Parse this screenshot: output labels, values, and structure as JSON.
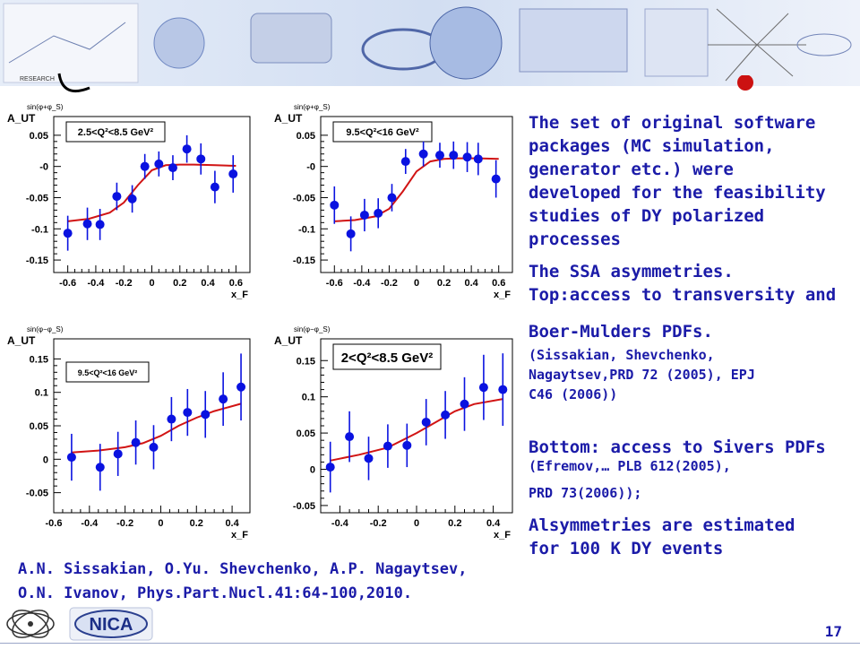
{
  "banner": {
    "logo_caption": "RESEARCH"
  },
  "description": {
    "p1": [
      "The set of original software",
      "packages (MC simulation,",
      "generator etc.) were",
      "developed for the feasibility",
      "studies of DY  polarized",
      "processes"
    ],
    "p2": [
      "The SSA asymmetries.",
      "Top:access to transversity and"
    ],
    "p3": "Boer-Mulders  PDFs.",
    "ref1": [
      "(Sissakian, Shevchenko,",
      "Nagaytsev,PRD 72 (2005), EPJ",
      "C46 (2006))"
    ],
    "p4": "Bottom: access to Sivers PDFs",
    "ref2": [
      "(Efremov,… PLB 612(2005),",
      "PRD 73(2006));"
    ],
    "p5": [
      "Alsymmetries are estimated",
      "for 100 K  DY events"
    ]
  },
  "citation": [
    "A.N. Sissakian, O.Yu. Shevchenko, A.P. Nagaytsev,",
    "O.N. Ivanov, Phys.Part.Nucl.41:64-100,2010."
  ],
  "footer": {
    "logo_text": "NICA",
    "page_number": "17"
  },
  "colors": {
    "point": "#0a12e0",
    "curve": "#d11414",
    "text": "#1b1ba8"
  },
  "chart_data": [
    {
      "type": "scatter",
      "ylabel": "A_UT",
      "ylabel_super": "sin(φ+φ_S)",
      "xlabel": "x_F",
      "legend": "2.5<Q²<8.5 GeV²",
      "xlim": [
        -0.7,
        0.7
      ],
      "ylim": [
        -0.17,
        0.08
      ],
      "xticks": [
        -0.6,
        -0.4,
        -0.2,
        0,
        0.2,
        0.4,
        0.6
      ],
      "xtick_labels": [
        "-0.6",
        "-0.4",
        "-0.2",
        "0",
        "0.2",
        "0.4",
        "0.6"
      ],
      "yticks": [
        -0.15,
        -0.1,
        -0.05,
        0,
        0.05
      ],
      "ytick_labels": [
        "-0.15",
        "-0.1",
        "-0.05",
        "-0",
        "0.05"
      ],
      "points": [
        {
          "x": -0.6,
          "y": -0.107,
          "err": 0.028
        },
        {
          "x": -0.46,
          "y": -0.092,
          "err": 0.026
        },
        {
          "x": -0.37,
          "y": -0.093,
          "err": 0.025
        },
        {
          "x": -0.25,
          "y": -0.048,
          "err": 0.022
        },
        {
          "x": -0.14,
          "y": -0.052,
          "err": 0.022
        },
        {
          "x": -0.05,
          "y": 0.0,
          "err": 0.02
        },
        {
          "x": 0.05,
          "y": 0.004,
          "err": 0.02
        },
        {
          "x": 0.15,
          "y": -0.002,
          "err": 0.02
        },
        {
          "x": 0.25,
          "y": 0.028,
          "err": 0.022
        },
        {
          "x": 0.35,
          "y": 0.012,
          "err": 0.025
        },
        {
          "x": 0.45,
          "y": -0.033,
          "err": 0.026
        },
        {
          "x": 0.58,
          "y": -0.012,
          "err": 0.03
        }
      ],
      "fit": {
        "x": [
          -0.6,
          -0.45,
          -0.3,
          -0.2,
          -0.1,
          0.0,
          0.1,
          0.2,
          0.3,
          0.45,
          0.6
        ],
        "y": [
          -0.088,
          -0.084,
          -0.074,
          -0.058,
          -0.03,
          -0.006,
          0.002,
          0.003,
          0.003,
          0.002,
          0.001
        ]
      }
    },
    {
      "type": "scatter",
      "ylabel": "A_UT",
      "ylabel_super": "sin(φ+φ_S)",
      "xlabel": "x_F",
      "legend": "9.5<Q²<16 GeV²",
      "xlim": [
        -0.7,
        0.7
      ],
      "ylim": [
        -0.17,
        0.08
      ],
      "xticks": [
        -0.6,
        -0.4,
        -0.2,
        0,
        0.2,
        0.4,
        0.6
      ],
      "xtick_labels": [
        "-0.6",
        "-0.4",
        "-0.2",
        "0",
        "0.2",
        "0.4",
        "0.6"
      ],
      "yticks": [
        -0.15,
        -0.1,
        -0.05,
        0,
        0.05
      ],
      "ytick_labels": [
        "-0.15",
        "-0.1",
        "-0.05",
        "-0",
        "0.05"
      ],
      "points": [
        {
          "x": -0.6,
          "y": -0.062,
          "err": 0.03
        },
        {
          "x": -0.48,
          "y": -0.108,
          "err": 0.028
        },
        {
          "x": -0.38,
          "y": -0.078,
          "err": 0.026
        },
        {
          "x": -0.28,
          "y": -0.075,
          "err": 0.024
        },
        {
          "x": -0.18,
          "y": -0.05,
          "err": 0.022
        },
        {
          "x": -0.08,
          "y": 0.008,
          "err": 0.02
        },
        {
          "x": 0.05,
          "y": 0.02,
          "err": 0.02
        },
        {
          "x": 0.17,
          "y": 0.018,
          "err": 0.02
        },
        {
          "x": 0.27,
          "y": 0.018,
          "err": 0.022
        },
        {
          "x": 0.37,
          "y": 0.015,
          "err": 0.024
        },
        {
          "x": 0.45,
          "y": 0.012,
          "err": 0.026
        },
        {
          "x": 0.58,
          "y": -0.02,
          "err": 0.03
        }
      ],
      "fit": {
        "x": [
          -0.6,
          -0.45,
          -0.3,
          -0.2,
          -0.1,
          0.0,
          0.1,
          0.2,
          0.3,
          0.45,
          0.6
        ],
        "y": [
          -0.088,
          -0.086,
          -0.08,
          -0.068,
          -0.04,
          -0.008,
          0.008,
          0.012,
          0.013,
          0.013,
          0.012
        ]
      }
    },
    {
      "type": "scatter",
      "ylabel": "A_UT",
      "ylabel_super": "sin(φ−φ_S)",
      "xlabel": "x_F",
      "legend": "9.5<Q²<16 GeV²",
      "xlim": [
        -0.6,
        0.5
      ],
      "ylim": [
        -0.08,
        0.18
      ],
      "xticks": [
        -0.6,
        -0.4,
        -0.2,
        0,
        0.2,
        0.4
      ],
      "xtick_labels": [
        "-0.6",
        "-0.4",
        "-0.2",
        "0",
        "0.2",
        "0.4"
      ],
      "yticks": [
        -0.05,
        0,
        0.05,
        0.1,
        0.15
      ],
      "ytick_labels": [
        "-0.05",
        "0",
        "0.05",
        "0.1",
        "0.15"
      ],
      "points": [
        {
          "x": -0.5,
          "y": 0.003,
          "err": 0.035
        },
        {
          "x": -0.34,
          "y": -0.012,
          "err": 0.035
        },
        {
          "x": -0.24,
          "y": 0.008,
          "err": 0.033
        },
        {
          "x": -0.14,
          "y": 0.025,
          "err": 0.033
        },
        {
          "x": -0.04,
          "y": 0.018,
          "err": 0.033
        },
        {
          "x": 0.06,
          "y": 0.06,
          "err": 0.033
        },
        {
          "x": 0.15,
          "y": 0.07,
          "err": 0.035
        },
        {
          "x": 0.25,
          "y": 0.067,
          "err": 0.035
        },
        {
          "x": 0.35,
          "y": 0.09,
          "err": 0.04
        },
        {
          "x": 0.45,
          "y": 0.108,
          "err": 0.05
        }
      ],
      "fit": {
        "x": [
          -0.5,
          -0.35,
          -0.2,
          -0.1,
          0.0,
          0.1,
          0.2,
          0.3,
          0.45
        ],
        "y": [
          0.01,
          0.013,
          0.018,
          0.024,
          0.035,
          0.05,
          0.062,
          0.072,
          0.083
        ]
      }
    },
    {
      "type": "scatter",
      "ylabel": "A_UT",
      "ylabel_super": "sin(φ−φ_S)",
      "xlabel": "x_F",
      "legend": "2<Q²<8.5 GeV²",
      "xlim": [
        -0.5,
        0.5
      ],
      "ylim": [
        -0.06,
        0.18
      ],
      "xticks": [
        -0.4,
        -0.2,
        0,
        0.2,
        0.4
      ],
      "xtick_labels": [
        "-0.4",
        "-0.2",
        "0",
        "0.2",
        "0.4"
      ],
      "yticks": [
        -0.05,
        0,
        0.05,
        0.1,
        0.15
      ],
      "ytick_labels": [
        "-0.05",
        "0",
        "0.05",
        "0.1",
        "0.15"
      ],
      "points": [
        {
          "x": -0.45,
          "y": 0.003,
          "err": 0.035
        },
        {
          "x": -0.35,
          "y": 0.045,
          "err": 0.035
        },
        {
          "x": -0.25,
          "y": 0.015,
          "err": 0.03
        },
        {
          "x": -0.15,
          "y": 0.032,
          "err": 0.03
        },
        {
          "x": -0.05,
          "y": 0.033,
          "err": 0.03
        },
        {
          "x": 0.05,
          "y": 0.065,
          "err": 0.032
        },
        {
          "x": 0.15,
          "y": 0.075,
          "err": 0.033
        },
        {
          "x": 0.25,
          "y": 0.09,
          "err": 0.037
        },
        {
          "x": 0.35,
          "y": 0.113,
          "err": 0.045
        },
        {
          "x": 0.45,
          "y": 0.11,
          "err": 0.05
        }
      ],
      "fit": {
        "x": [
          -0.45,
          -0.3,
          -0.15,
          0.0,
          0.1,
          0.2,
          0.3,
          0.45
        ],
        "y": [
          0.012,
          0.02,
          0.03,
          0.05,
          0.065,
          0.08,
          0.09,
          0.097
        ]
      }
    }
  ]
}
